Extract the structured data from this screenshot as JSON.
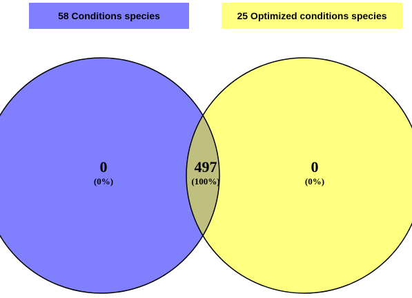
{
  "legend": {
    "set_a_label": "58 Conditions species",
    "set_b_label": "25 Optimized conditions species"
  },
  "colors": {
    "set_a": "#8080ff",
    "set_b": "#ffff80",
    "overlap": "#bfbf80",
    "outline": "#000000"
  },
  "regions": {
    "only_a": {
      "count": "0",
      "percent": "(0%)"
    },
    "overlap": {
      "count": "497",
      "percent": "(100%)"
    },
    "only_b": {
      "count": "0",
      "percent": "(0%)"
    }
  }
}
